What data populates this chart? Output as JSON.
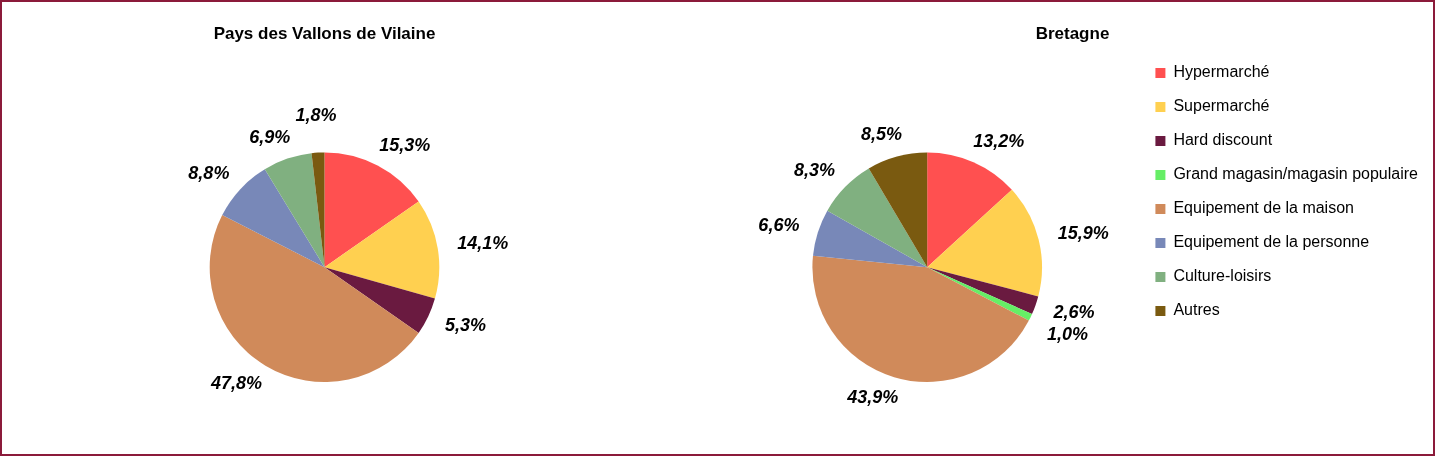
{
  "chart_data": [
    {
      "type": "pie",
      "title": "Pays des Vallons de Vilaine",
      "categories": [
        null,
        null,
        null,
        null,
        null,
        null,
        null
      ],
      "values": [
        15.3,
        14.1,
        5.3,
        47.8,
        8.8,
        6.9,
        1.8
      ],
      "value_labels": [
        "15,3%",
        "14,1%",
        "5,3%",
        "47,8%",
        "8,8%",
        "6,9%",
        "1,8%"
      ],
      "colors": [
        "#ff5050",
        "#ffd050",
        "#6a1a40",
        "#d08a5a",
        "#7888b8",
        "#80b080",
        "#7a5a10"
      ],
      "legend": false
    },
    {
      "type": "pie",
      "title": "Bretagne",
      "categories": [
        "Hypermarché",
        "Supermarché",
        "Hard discount",
        "Grand magasin/magasin populaire",
        "Equipement de la maison",
        "Equipement de la personne",
        "Culture-loisirs",
        "Autres"
      ],
      "values": [
        13.2,
        15.9,
        2.6,
        1.0,
        43.9,
        6.6,
        8.3,
        8.5
      ],
      "value_labels": [
        "13,2%",
        "15,9%",
        "2,6%",
        "1,0%",
        "43,9%",
        "6,6%",
        "8,3%",
        "8,5%"
      ],
      "colors": [
        "#ff5050",
        "#ffd050",
        "#6a1a40",
        "#66ee66",
        "#d08a5a",
        "#7888b8",
        "#80b080",
        "#7a5a10"
      ],
      "legend": "right"
    }
  ]
}
